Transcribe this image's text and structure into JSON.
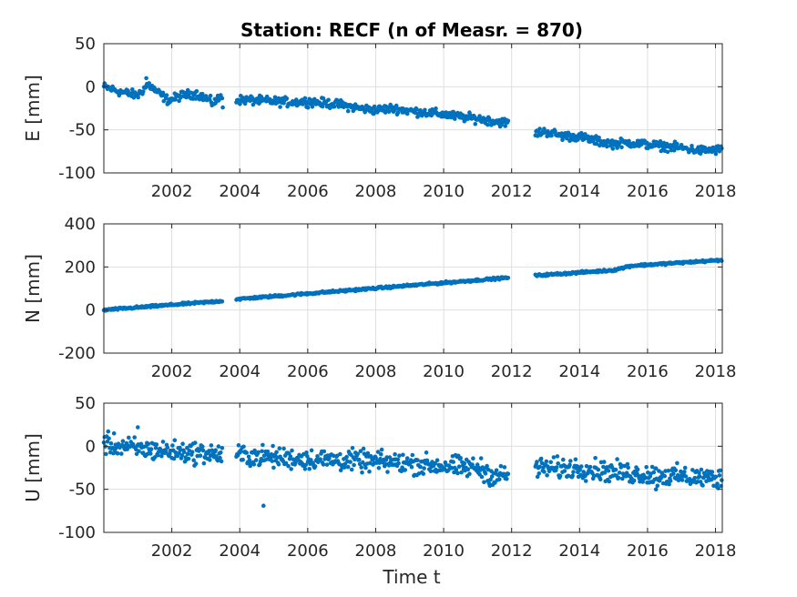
{
  "title": "Station: RECF (n of Measr. = 870)",
  "chart_data": [
    {
      "type": "scatter",
      "panel": "E",
      "ylabel": "E [mm]",
      "xlabel": "",
      "xlim": [
        2000.0,
        2018.2
      ],
      "ylim": [
        -100,
        50
      ],
      "xticks": [
        2002,
        2004,
        2006,
        2008,
        2010,
        2012,
        2014,
        2016,
        2018
      ],
      "yticks": [
        -100,
        -50,
        0,
        50
      ],
      "grid": true,
      "color": "#0072BD",
      "trend_segments": [
        {
          "x": [
            2000.0,
            2000.5,
            2001.0,
            2001.3,
            2001.6,
            2001.9,
            2002.3,
            2002.7,
            2003.0,
            2003.2,
            2003.5
          ],
          "y": [
            0,
            -6,
            -10,
            3,
            -7,
            -16,
            -10,
            -8,
            -13,
            -19,
            -11
          ]
        },
        {
          "x": [
            2003.9,
            2004.5,
            2005.0,
            2005.5,
            2006.0,
            2006.5,
            2007.0,
            2007.5,
            2008.0,
            2008.5,
            2009.0,
            2009.5,
            2010.0,
            2010.5,
            2011.0,
            2011.5,
            2011.9
          ],
          "y": [
            -15,
            -16,
            -17,
            -18,
            -17,
            -19,
            -21,
            -25,
            -27,
            -25,
            -28,
            -30,
            -32,
            -35,
            -37,
            -40,
            -42
          ]
        },
        {
          "x": [
            2012.7,
            2013.0,
            2013.5,
            2014.0,
            2014.5,
            2015.0,
            2015.5,
            2016.0,
            2016.5,
            2017.0,
            2017.5,
            2018.2
          ],
          "y": [
            -54,
            -52,
            -57,
            -58,
            -63,
            -66,
            -65,
            -67,
            -69,
            -71,
            -74,
            -73
          ]
        }
      ],
      "outliers": {
        "x": [
          2001.25,
          2003.5
        ],
        "y": [
          10,
          -24
        ]
      },
      "noise_mm": 2.5
    },
    {
      "type": "scatter",
      "panel": "N",
      "ylabel": "N [mm]",
      "xlabel": "",
      "xlim": [
        2000.0,
        2018.2
      ],
      "ylim": [
        -200,
        400
      ],
      "xticks": [
        2002,
        2004,
        2006,
        2008,
        2010,
        2012,
        2014,
        2016,
        2018
      ],
      "yticks": [
        -200,
        0,
        200,
        400
      ],
      "grid": true,
      "color": "#0072BD",
      "trend_segments": [
        {
          "x": [
            2000.0,
            2003.5
          ],
          "y": [
            0,
            42
          ]
        },
        {
          "x": [
            2003.9,
            2011.9
          ],
          "y": [
            50,
            150
          ]
        },
        {
          "x": [
            2012.7,
            2015.0,
            2015.5,
            2018.2
          ],
          "y": [
            160,
            185,
            205,
            232
          ]
        }
      ],
      "outliers": {
        "x": [],
        "y": []
      },
      "noise_mm": 2.5
    },
    {
      "type": "scatter",
      "panel": "U",
      "ylabel": "U [mm]",
      "xlabel": "Time t",
      "xlim": [
        2000.0,
        2018.2
      ],
      "ylim": [
        -100,
        50
      ],
      "xticks": [
        2002,
        2004,
        2006,
        2008,
        2010,
        2012,
        2014,
        2016,
        2018
      ],
      "yticks": [
        -100,
        -50,
        0,
        50
      ],
      "grid": true,
      "color": "#0072BD",
      "trend_segments": [
        {
          "x": [
            2000.0,
            2001.0,
            2002.0,
            2003.0,
            2003.5
          ],
          "y": [
            3,
            -3,
            -6,
            -8,
            -10
          ]
        },
        {
          "x": [
            2003.9,
            2005.0,
            2006.0,
            2007.0,
            2008.0,
            2009.0,
            2010.0,
            2011.0,
            2011.5,
            2011.9
          ],
          "y": [
            -10,
            -13,
            -15,
            -16,
            -18,
            -20,
            -23,
            -25,
            -35,
            -33
          ]
        },
        {
          "x": [
            2012.7,
            2013.5,
            2014.0,
            2015.0,
            2016.0,
            2017.0,
            2018.2
          ],
          "y": [
            -25,
            -26,
            -25,
            -30,
            -33,
            -35,
            -38
          ]
        }
      ],
      "outliers": {
        "x": [
          2001.0,
          2004.7,
          2016.25
        ],
        "y": [
          22,
          -69,
          -50
        ]
      },
      "noise_mm": 6
    }
  ]
}
